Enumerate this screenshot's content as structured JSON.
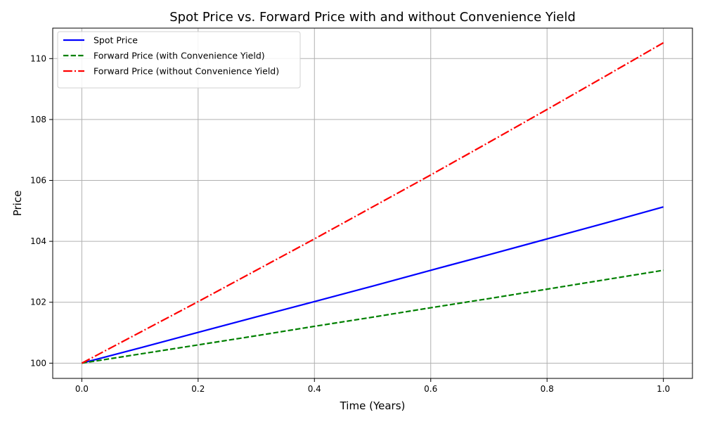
{
  "chart_data": {
    "type": "line",
    "title": "Spot Price vs. Forward Price with and without Convenience Yield",
    "xlabel": "Time (Years)",
    "ylabel": "Price",
    "xlim": [
      -0.05,
      1.05
    ],
    "ylim": [
      99.5,
      111.0
    ],
    "xticks": [
      0.0,
      0.2,
      0.4,
      0.6,
      0.8,
      1.0
    ],
    "xtick_labels": [
      "0.0",
      "0.2",
      "0.4",
      "0.6",
      "0.8",
      "1.0"
    ],
    "yticks": [
      100,
      102,
      104,
      106,
      108,
      110
    ],
    "ytick_labels": [
      "100",
      "102",
      "104",
      "106",
      "108",
      "110"
    ],
    "grid": true,
    "legend_position": "top-left",
    "x": [
      0.0,
      0.1,
      0.2,
      0.3,
      0.4,
      0.5,
      0.6,
      0.7,
      0.8,
      0.9,
      1.0
    ],
    "series": [
      {
        "name": "Spot Price",
        "color": "#0000ff",
        "dash": "solid",
        "values": [
          100.0,
          100.5,
          101.01,
          101.52,
          102.02,
          102.53,
          103.05,
          103.56,
          104.08,
          104.6,
          105.13
        ]
      },
      {
        "name": "Forward Price (with Convenience Yield)",
        "color": "#008000",
        "dash": "dashed",
        "values": [
          100.0,
          100.3,
          100.6,
          100.9,
          101.21,
          101.51,
          101.82,
          102.12,
          102.43,
          102.74,
          103.05
        ]
      },
      {
        "name": "Forward Price (without Convenience Yield)",
        "color": "#ff0000",
        "dash": "dashdot",
        "values": [
          100.0,
          101.01,
          102.02,
          103.05,
          104.08,
          105.13,
          106.18,
          107.25,
          108.33,
          109.42,
          110.52
        ]
      }
    ]
  }
}
